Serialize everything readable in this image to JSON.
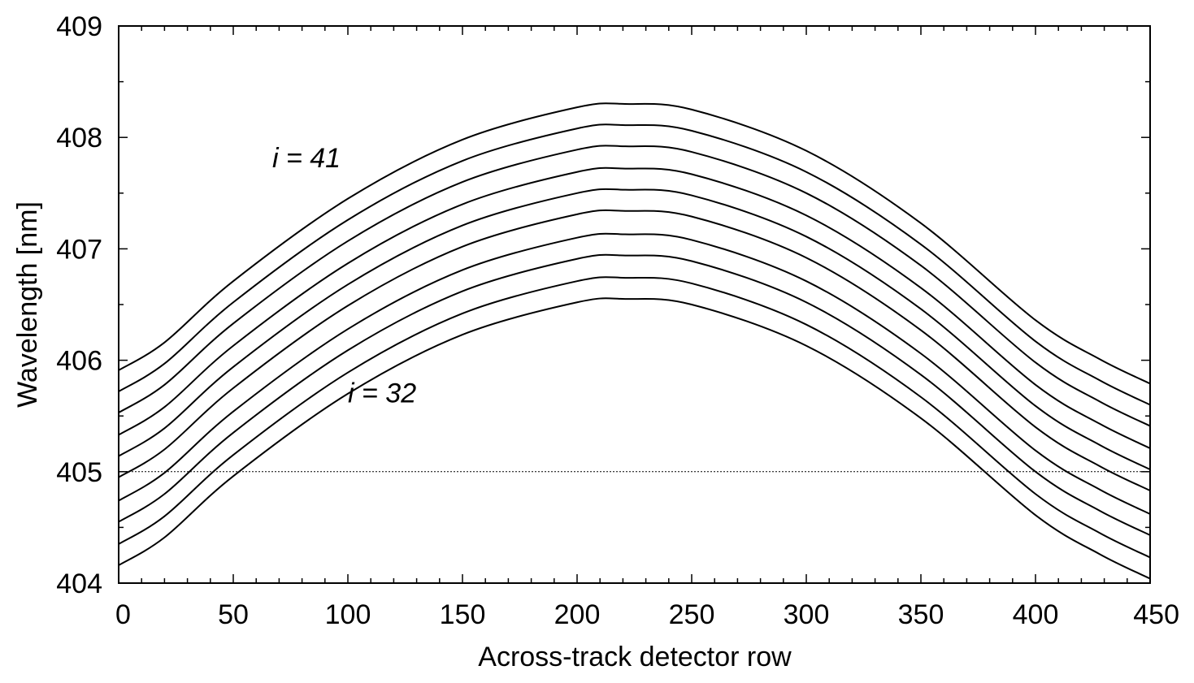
{
  "chart_data": {
    "type": "line",
    "xlabel": "Across-track detector row",
    "ylabel": "Wavelength  [nm]",
    "xlim": [
      0,
      450
    ],
    "ylim": [
      404,
      409
    ],
    "xticks": [
      0,
      50,
      100,
      150,
      200,
      250,
      300,
      350,
      400,
      450
    ],
    "xtick_labels": [
      "0",
      "50",
      "100",
      "150",
      "200",
      "250",
      "300",
      "350",
      "400",
      "450"
    ],
    "yticks": [
      404,
      405,
      406,
      407,
      408,
      409
    ],
    "ytick_labels": [
      "404",
      "405",
      "406",
      "407",
      "408",
      "409"
    ],
    "x_minor_step": 10,
    "y_minor_step": 0.5,
    "grid": false,
    "reference_line": {
      "y": 405,
      "style": "dotted"
    },
    "x": [
      0,
      20,
      50,
      100,
      150,
      200,
      221,
      250,
      300,
      350,
      400,
      428,
      450
    ],
    "series": [
      {
        "values": [
          404.16,
          404.41,
          404.96,
          405.7,
          406.23,
          406.52,
          406.55,
          406.5,
          406.13,
          405.48,
          404.61,
          404.26,
          404.04
        ]
      },
      {
        "values": [
          404.35,
          404.6,
          405.15,
          405.89,
          406.42,
          406.71,
          406.74,
          406.69,
          406.32,
          405.67,
          404.8,
          404.45,
          404.23
        ]
      },
      {
        "values": [
          404.55,
          404.8,
          405.35,
          406.09,
          406.62,
          406.91,
          406.94,
          406.89,
          406.52,
          405.87,
          405.0,
          404.65,
          404.43
        ]
      },
      {
        "values": [
          404.74,
          404.99,
          405.54,
          406.28,
          406.81,
          407.1,
          407.13,
          407.08,
          406.71,
          406.06,
          405.19,
          404.84,
          404.62
        ]
      },
      {
        "values": [
          404.95,
          405.2,
          405.75,
          406.49,
          407.02,
          407.31,
          407.34,
          407.29,
          406.92,
          406.27,
          405.4,
          405.05,
          404.83
        ]
      },
      {
        "values": [
          405.14,
          405.39,
          405.94,
          406.68,
          407.21,
          407.5,
          407.53,
          407.48,
          407.11,
          406.46,
          405.59,
          405.24,
          405.02
        ]
      },
      {
        "values": [
          405.33,
          405.58,
          406.13,
          406.87,
          407.4,
          407.69,
          407.72,
          407.67,
          407.3,
          406.65,
          405.78,
          405.43,
          405.21
        ]
      },
      {
        "values": [
          405.53,
          405.78,
          406.33,
          407.07,
          407.6,
          407.89,
          407.92,
          407.87,
          407.5,
          406.85,
          405.98,
          405.63,
          405.41
        ]
      },
      {
        "values": [
          405.72,
          405.97,
          406.52,
          407.26,
          407.79,
          408.08,
          408.11,
          408.06,
          407.69,
          407.04,
          406.17,
          405.82,
          405.6
        ]
      },
      {
        "values": [
          405.91,
          406.16,
          406.71,
          407.45,
          407.98,
          408.27,
          408.3,
          408.25,
          407.88,
          407.23,
          406.36,
          406.01,
          405.79
        ]
      }
    ],
    "annotations": [
      {
        "text": "i = 41",
        "x": 67,
        "y": 407.73
      },
      {
        "text": "i = 32",
        "x": 100,
        "y": 405.62
      }
    ]
  }
}
